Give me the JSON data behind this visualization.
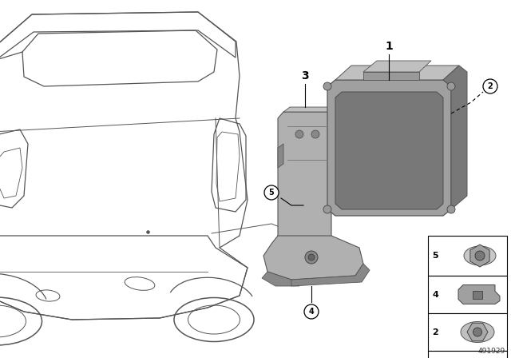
{
  "part_number": "491929",
  "bg_color": "#ffffff",
  "car_color": "#555555",
  "part_fill": "#b0b0b0",
  "part_dark": "#888888",
  "part_mid": "#999999",
  "ecu_fill": "#a0a0a0",
  "ecu_dark": "#787878",
  "ecu_light": "#c0c0c0",
  "label_color": "#000000"
}
